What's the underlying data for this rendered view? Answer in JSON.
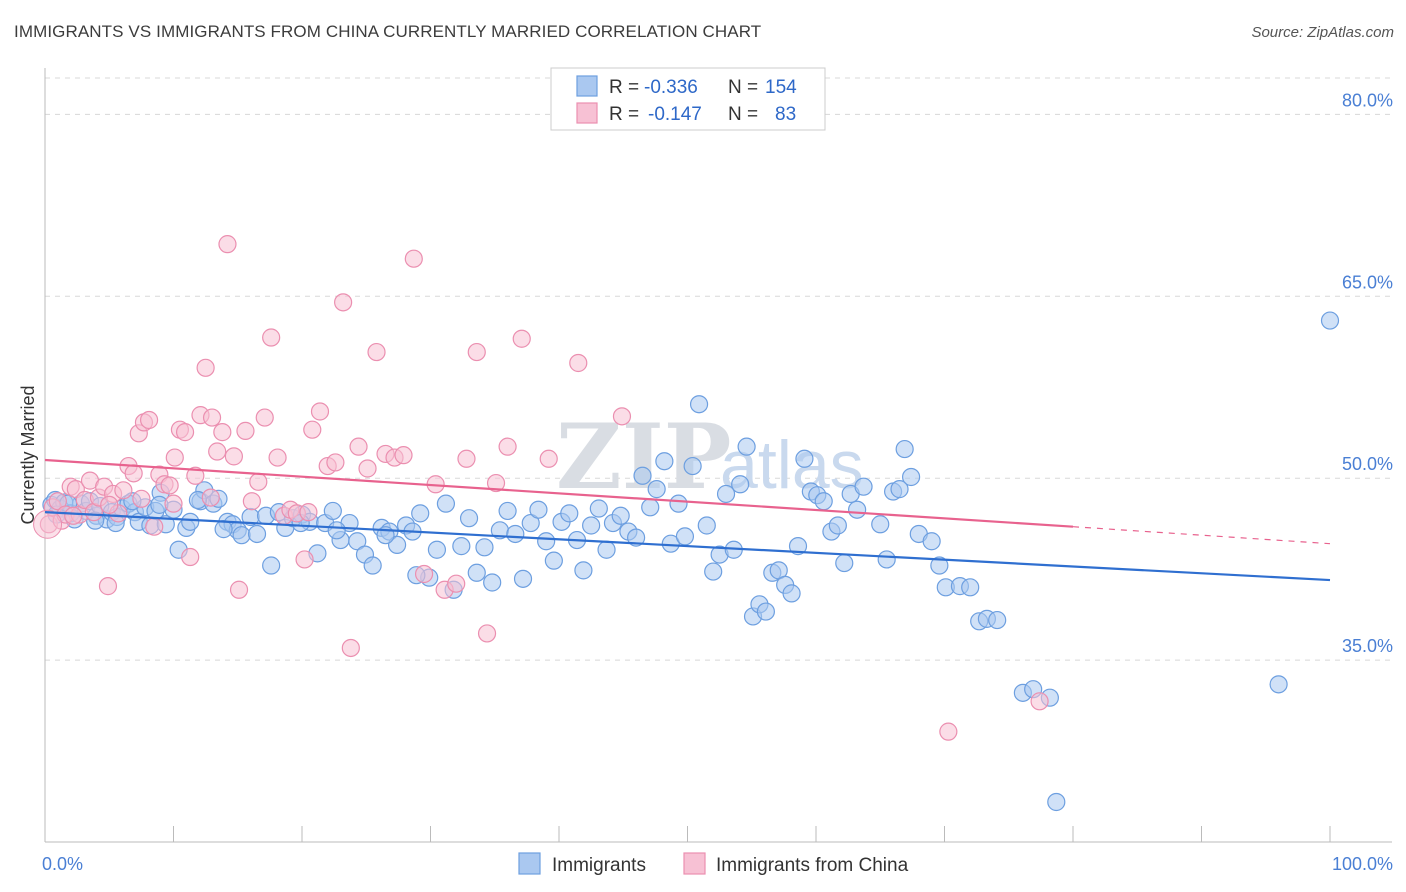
{
  "header": {
    "title": "IMMIGRANTS VS IMMIGRANTS FROM CHINA CURRENTLY MARRIED CORRELATION CHART",
    "source": "Source: ZipAtlas.com"
  },
  "watermark": {
    "part1": "ZIP",
    "part2": "atlas"
  },
  "legend": {
    "rows": [
      {
        "r_label": "R =",
        "r_value": "-0.336",
        "n_label": "N =",
        "n_value": "154",
        "color": "#7fb0ea"
      },
      {
        "r_label": "R =",
        "r_value": "-0.147",
        "n_label": "N =",
        "n_value": "83",
        "color": "#f4a6c0"
      }
    ]
  },
  "bottom_legend": [
    "Immigrants",
    "Immigrants from China"
  ],
  "colors": {
    "blue_fill": "#aac8f0",
    "blue_stroke": "#6d9fe0",
    "blue_line": "#2f6fd0",
    "pink_fill": "#f7c1d4",
    "pink_stroke": "#eb8fb0",
    "pink_line": "#e8628e",
    "axis_label": "#4a7fd4",
    "grid": "#d8d8d8"
  },
  "chart_data": {
    "type": "scatter",
    "title": "IMMIGRANTS VS IMMIGRANTS FROM CHINA CURRENTLY MARRIED CORRELATION CHART",
    "xlabel": "",
    "ylabel": "Currently Married",
    "xlim": [
      0,
      100
    ],
    "ylim": [
      20,
      83
    ],
    "x_tick_labels": [
      "0.0%",
      "100.0%"
    ],
    "y_ticks": [
      35,
      50,
      65,
      80
    ],
    "y_tick_labels": [
      "35.0%",
      "50.0%",
      "65.0%",
      "80.0%"
    ],
    "grid": true,
    "legend_position": "top-center",
    "series": [
      {
        "name": "Immigrants",
        "r": -0.336,
        "n": 154,
        "trend": {
          "x": [
            0,
            100
          ],
          "y": [
            47.2,
            41.6
          ]
        },
        "points": [
          [
            0.5,
            47.8
          ],
          [
            0.8,
            48.2
          ],
          [
            1.2,
            47.5
          ],
          [
            1.5,
            48.0
          ],
          [
            2.0,
            47.1
          ],
          [
            2.3,
            46.6
          ],
          [
            2.8,
            47.9
          ],
          [
            3.2,
            47.3
          ],
          [
            3.5,
            48.1
          ],
          [
            4.0,
            46.9
          ],
          [
            4.3,
            47.7
          ],
          [
            4.8,
            46.6
          ],
          [
            5.2,
            47.2
          ],
          [
            5.6,
            46.8
          ],
          [
            6.0,
            47.5
          ],
          [
            6.5,
            47.9
          ],
          [
            7.0,
            47.2
          ],
          [
            7.3,
            46.4
          ],
          [
            7.8,
            47.6
          ],
          [
            8.2,
            46.1
          ],
          [
            8.6,
            47.3
          ],
          [
            9.0,
            48.8
          ],
          [
            9.4,
            46.2
          ],
          [
            10.0,
            47.4
          ],
          [
            10.4,
            44.1
          ],
          [
            11.0,
            45.9
          ],
          [
            11.3,
            46.4
          ],
          [
            12.1,
            48.1
          ],
          [
            12.4,
            49.0
          ],
          [
            13.1,
            47.9
          ],
          [
            13.5,
            48.3
          ],
          [
            14.2,
            46.4
          ],
          [
            14.6,
            46.2
          ],
          [
            15.0,
            45.7
          ],
          [
            15.3,
            45.3
          ],
          [
            16.0,
            46.8
          ],
          [
            16.5,
            45.4
          ],
          [
            17.2,
            46.9
          ],
          [
            17.6,
            42.8
          ],
          [
            18.2,
            47.2
          ],
          [
            18.7,
            45.9
          ],
          [
            19.3,
            46.7
          ],
          [
            20.0,
            47.0
          ],
          [
            20.6,
            46.4
          ],
          [
            21.2,
            43.8
          ],
          [
            21.8,
            46.3
          ],
          [
            22.4,
            47.3
          ],
          [
            23.0,
            44.9
          ],
          [
            23.7,
            46.3
          ],
          [
            24.3,
            44.8
          ],
          [
            24.9,
            43.7
          ],
          [
            25.5,
            42.8
          ],
          [
            26.2,
            45.9
          ],
          [
            26.8,
            45.6
          ],
          [
            27.4,
            44.5
          ],
          [
            28.1,
            46.1
          ],
          [
            28.6,
            45.6
          ],
          [
            29.2,
            47.1
          ],
          [
            29.9,
            41.8
          ],
          [
            30.5,
            44.1
          ],
          [
            31.2,
            47.9
          ],
          [
            31.8,
            40.8
          ],
          [
            32.4,
            44.4
          ],
          [
            33.0,
            46.7
          ],
          [
            33.6,
            42.2
          ],
          [
            34.2,
            44.3
          ],
          [
            34.8,
            41.4
          ],
          [
            35.4,
            45.7
          ],
          [
            36.0,
            47.3
          ],
          [
            36.6,
            45.4
          ],
          [
            37.2,
            41.7
          ],
          [
            37.8,
            46.3
          ],
          [
            38.4,
            47.4
          ],
          [
            39.0,
            44.8
          ],
          [
            39.6,
            43.2
          ],
          [
            40.2,
            46.4
          ],
          [
            40.8,
            47.1
          ],
          [
            41.4,
            44.9
          ],
          [
            41.9,
            42.4
          ],
          [
            42.5,
            46.1
          ],
          [
            43.1,
            47.5
          ],
          [
            43.7,
            44.1
          ],
          [
            44.2,
            46.3
          ],
          [
            44.8,
            46.9
          ],
          [
            45.4,
            45.6
          ],
          [
            46.0,
            45.1
          ],
          [
            46.5,
            50.2
          ],
          [
            47.1,
            47.6
          ],
          [
            47.6,
            49.1
          ],
          [
            48.2,
            51.4
          ],
          [
            48.7,
            44.6
          ],
          [
            49.3,
            47.9
          ],
          [
            49.8,
            45.2
          ],
          [
            50.4,
            51.0
          ],
          [
            50.9,
            56.1
          ],
          [
            51.5,
            46.1
          ],
          [
            52.0,
            42.3
          ],
          [
            52.5,
            43.7
          ],
          [
            53.0,
            48.7
          ],
          [
            53.6,
            44.1
          ],
          [
            54.1,
            49.5
          ],
          [
            54.6,
            52.6
          ],
          [
            55.1,
            38.6
          ],
          [
            55.6,
            39.6
          ],
          [
            56.1,
            39.0
          ],
          [
            56.6,
            42.2
          ],
          [
            57.1,
            42.4
          ],
          [
            57.6,
            41.2
          ],
          [
            58.1,
            40.5
          ],
          [
            58.6,
            44.4
          ],
          [
            59.1,
            51.6
          ],
          [
            59.6,
            48.9
          ],
          [
            60.1,
            48.6
          ],
          [
            60.6,
            48.1
          ],
          [
            61.2,
            45.6
          ],
          [
            61.7,
            46.1
          ],
          [
            62.2,
            43.0
          ],
          [
            62.7,
            48.7
          ],
          [
            63.2,
            47.4
          ],
          [
            63.7,
            49.3
          ],
          [
            65.0,
            46.2
          ],
          [
            65.5,
            43.3
          ],
          [
            66.0,
            48.9
          ],
          [
            66.5,
            49.1
          ],
          [
            66.9,
            52.4
          ],
          [
            67.4,
            50.1
          ],
          [
            68.0,
            45.4
          ],
          [
            69.0,
            44.8
          ],
          [
            69.6,
            42.8
          ],
          [
            70.1,
            41.0
          ],
          [
            71.2,
            41.1
          ],
          [
            72.0,
            41.0
          ],
          [
            72.7,
            38.2
          ],
          [
            73.3,
            38.4
          ],
          [
            74.1,
            38.3
          ],
          [
            76.1,
            32.3
          ],
          [
            76.9,
            32.6
          ],
          [
            78.2,
            31.9
          ],
          [
            78.7,
            23.3
          ],
          [
            96.0,
            33.0
          ],
          [
            100.0,
            63.0
          ],
          [
            0.9,
            47.0
          ],
          [
            1.8,
            47.9
          ],
          [
            3.9,
            46.5
          ],
          [
            5.5,
            46.3
          ],
          [
            6.8,
            48.1
          ],
          [
            8.9,
            47.8
          ],
          [
            11.9,
            48.2
          ],
          [
            13.9,
            45.8
          ],
          [
            19.9,
            46.3
          ],
          [
            22.7,
            45.7
          ],
          [
            26.5,
            45.3
          ],
          [
            28.9,
            42.0
          ]
        ]
      },
      {
        "name": "Immigrants from China",
        "r": -0.147,
        "n": 83,
        "trend": {
          "x": [
            0,
            80
          ],
          "y": [
            51.5,
            46.0
          ]
        },
        "trend_dashed": {
          "x": [
            80,
            100
          ],
          "y": [
            46.0,
            44.6
          ]
        },
        "points": [
          [
            0.3,
            46.2
          ],
          [
            0.6,
            47.6
          ],
          [
            1.0,
            48.1
          ],
          [
            1.3,
            46.5
          ],
          [
            1.6,
            47.0
          ],
          [
            2.0,
            49.3
          ],
          [
            2.4,
            49.1
          ],
          [
            2.7,
            47.0
          ],
          [
            3.1,
            48.2
          ],
          [
            3.5,
            49.8
          ],
          [
            3.8,
            47.2
          ],
          [
            4.2,
            48.4
          ],
          [
            4.6,
            49.3
          ],
          [
            4.9,
            41.1
          ],
          [
            5.3,
            48.7
          ],
          [
            5.7,
            47.1
          ],
          [
            6.1,
            49.0
          ],
          [
            6.5,
            51.0
          ],
          [
            6.9,
            50.4
          ],
          [
            7.3,
            53.7
          ],
          [
            7.7,
            54.6
          ],
          [
            8.1,
            54.8
          ],
          [
            8.5,
            46.0
          ],
          [
            8.9,
            50.3
          ],
          [
            9.3,
            49.5
          ],
          [
            9.7,
            49.4
          ],
          [
            10.1,
            51.7
          ],
          [
            10.5,
            54.0
          ],
          [
            10.9,
            53.8
          ],
          [
            11.3,
            43.5
          ],
          [
            11.7,
            50.2
          ],
          [
            12.1,
            55.2
          ],
          [
            12.5,
            59.1
          ],
          [
            13.0,
            55.0
          ],
          [
            13.4,
            52.2
          ],
          [
            13.8,
            53.8
          ],
          [
            14.2,
            69.3
          ],
          [
            14.7,
            51.8
          ],
          [
            15.1,
            40.8
          ],
          [
            15.6,
            53.9
          ],
          [
            16.1,
            48.1
          ],
          [
            16.6,
            49.7
          ],
          [
            17.1,
            55.0
          ],
          [
            17.6,
            61.6
          ],
          [
            18.1,
            51.7
          ],
          [
            18.6,
            46.9
          ],
          [
            19.1,
            47.4
          ],
          [
            19.6,
            47.1
          ],
          [
            20.2,
            43.3
          ],
          [
            20.8,
            54.0
          ],
          [
            21.4,
            55.5
          ],
          [
            22.0,
            51.0
          ],
          [
            22.6,
            51.3
          ],
          [
            23.2,
            64.5
          ],
          [
            23.8,
            36.0
          ],
          [
            24.4,
            52.6
          ],
          [
            25.1,
            50.8
          ],
          [
            25.8,
            60.4
          ],
          [
            26.5,
            52.0
          ],
          [
            27.2,
            51.7
          ],
          [
            27.9,
            51.9
          ],
          [
            28.7,
            68.1
          ],
          [
            29.5,
            42.1
          ],
          [
            30.4,
            49.5
          ],
          [
            31.1,
            40.8
          ],
          [
            32.0,
            41.3
          ],
          [
            32.8,
            51.6
          ],
          [
            33.6,
            60.4
          ],
          [
            34.4,
            37.2
          ],
          [
            35.1,
            49.6
          ],
          [
            36.0,
            52.6
          ],
          [
            37.1,
            61.5
          ],
          [
            39.2,
            51.6
          ],
          [
            41.5,
            59.5
          ],
          [
            44.9,
            55.1
          ],
          [
            70.3,
            29.1
          ],
          [
            77.4,
            31.6
          ],
          [
            2.2,
            46.9
          ],
          [
            5.0,
            47.8
          ],
          [
            7.5,
            48.3
          ],
          [
            10.0,
            47.9
          ],
          [
            12.9,
            48.4
          ],
          [
            20.5,
            47.2
          ]
        ]
      }
    ]
  }
}
